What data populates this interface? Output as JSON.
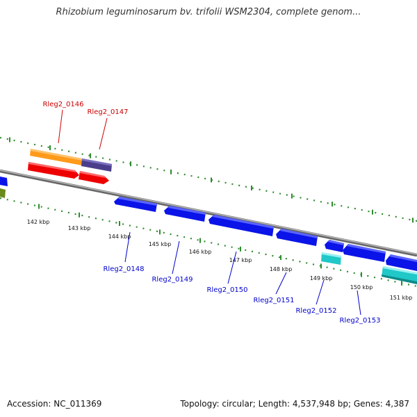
{
  "title": "Rhizobium leguminosarum bv. trifolii WSM2304, complete genom...",
  "accession": "Accession: NC_011369",
  "topology": "Topology: circular; Length: 4,537,948 bp; Genes: 4,387",
  "colors": {
    "backbone": "#8a8a8a",
    "tick": "#2e8b2e",
    "forward_label": "#cc0000",
    "reverse_label": "#0000cc",
    "blue_gene": "#0a14e8",
    "red_gene": "#ee0000",
    "orange_feature": "#ff9a1a",
    "purple_feature": "#4a3e8c",
    "cyan_gene": "#20c8c8",
    "olive_feature": "#6a8a1a"
  },
  "tick_labels": [
    "142 kbp",
    "143 kbp",
    "144 kbp",
    "145 kbp",
    "146 kbp",
    "147 kbp",
    "148 kbp",
    "149 kbp",
    "150 kbp",
    "151 kbp"
  ],
  "forward_labels": [
    "Rleg2_0146",
    "Rleg2_0147"
  ],
  "reverse_labels": [
    "Rleg2_0148",
    "Rleg2_0149",
    "Rleg2_0150",
    "Rleg2_0151",
    "Rleg2_0152",
    "Rleg2_0153"
  ]
}
